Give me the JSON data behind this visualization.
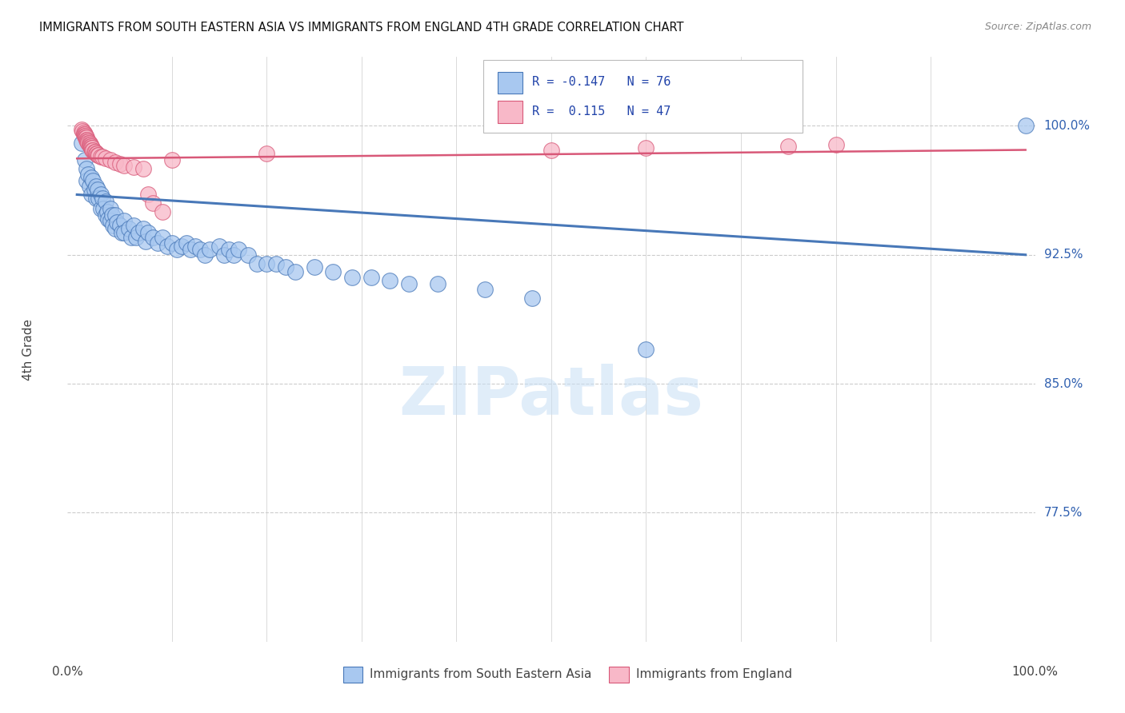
{
  "title": "IMMIGRANTS FROM SOUTH EASTERN ASIA VS IMMIGRANTS FROM ENGLAND 4TH GRADE CORRELATION CHART",
  "source": "Source: ZipAtlas.com",
  "ylabel": "4th Grade",
  "legend_blue_label": "Immigrants from South Eastern Asia",
  "legend_pink_label": "Immigrants from England",
  "legend_blue_R": "R = -0.147",
  "legend_blue_N": "N = 76",
  "legend_pink_R": "R =  0.115",
  "legend_pink_N": "N = 47",
  "ytick_labels": [
    "77.5%",
    "85.0%",
    "92.5%",
    "100.0%"
  ],
  "ytick_values": [
    0.775,
    0.85,
    0.925,
    1.0
  ],
  "ymin": 0.7,
  "ymax": 1.04,
  "xmin": -0.01,
  "xmax": 1.01,
  "blue_color": "#A8C8F0",
  "blue_edge_color": "#4878B8",
  "pink_color": "#F8B8C8",
  "pink_edge_color": "#D85878",
  "watermark": "ZIPatlas",
  "blue_scatter_x": [
    0.005,
    0.008,
    0.01,
    0.01,
    0.012,
    0.013,
    0.015,
    0.015,
    0.017,
    0.018,
    0.02,
    0.02,
    0.022,
    0.023,
    0.025,
    0.025,
    0.027,
    0.028,
    0.03,
    0.03,
    0.032,
    0.033,
    0.035,
    0.035,
    0.037,
    0.038,
    0.04,
    0.04,
    0.042,
    0.045,
    0.047,
    0.05,
    0.05,
    0.055,
    0.057,
    0.06,
    0.062,
    0.065,
    0.07,
    0.072,
    0.075,
    0.08,
    0.085,
    0.09,
    0.095,
    0.1,
    0.105,
    0.11,
    0.115,
    0.12,
    0.125,
    0.13,
    0.135,
    0.14,
    0.15,
    0.155,
    0.16,
    0.165,
    0.17,
    0.18,
    0.19,
    0.2,
    0.21,
    0.22,
    0.23,
    0.25,
    0.27,
    0.29,
    0.31,
    0.33,
    0.35,
    0.38,
    0.43,
    0.48,
    0.6,
    1.0
  ],
  "blue_scatter_y": [
    0.99,
    0.98,
    0.975,
    0.968,
    0.972,
    0.965,
    0.97,
    0.96,
    0.968,
    0.963,
    0.965,
    0.958,
    0.963,
    0.958,
    0.96,
    0.952,
    0.958,
    0.952,
    0.956,
    0.948,
    0.95,
    0.946,
    0.952,
    0.945,
    0.948,
    0.942,
    0.948,
    0.94,
    0.944,
    0.942,
    0.938,
    0.945,
    0.938,
    0.94,
    0.935,
    0.942,
    0.935,
    0.938,
    0.94,
    0.933,
    0.938,
    0.935,
    0.932,
    0.935,
    0.93,
    0.932,
    0.928,
    0.93,
    0.932,
    0.928,
    0.93,
    0.928,
    0.925,
    0.928,
    0.93,
    0.925,
    0.928,
    0.925,
    0.928,
    0.925,
    0.92,
    0.92,
    0.92,
    0.918,
    0.915,
    0.918,
    0.915,
    0.912,
    0.912,
    0.91,
    0.908,
    0.908,
    0.905,
    0.9,
    0.87,
    1.0
  ],
  "pink_scatter_x": [
    0.005,
    0.006,
    0.007,
    0.007,
    0.008,
    0.008,
    0.009,
    0.009,
    0.01,
    0.01,
    0.011,
    0.011,
    0.012,
    0.012,
    0.013,
    0.013,
    0.014,
    0.014,
    0.015,
    0.015,
    0.016,
    0.016,
    0.017,
    0.018,
    0.019,
    0.02,
    0.021,
    0.022,
    0.023,
    0.025,
    0.027,
    0.03,
    0.035,
    0.04,
    0.045,
    0.05,
    0.06,
    0.07,
    0.075,
    0.08,
    0.09,
    0.1,
    0.2,
    0.5,
    0.6,
    0.75,
    0.8
  ],
  "pink_scatter_y": [
    0.998,
    0.997,
    0.996,
    0.995,
    0.995,
    0.994,
    0.994,
    0.993,
    0.993,
    0.992,
    0.992,
    0.991,
    0.991,
    0.99,
    0.99,
    0.989,
    0.989,
    0.988,
    0.988,
    0.987,
    0.987,
    0.986,
    0.986,
    0.985,
    0.985,
    0.984,
    0.984,
    0.983,
    0.983,
    0.982,
    0.982,
    0.981,
    0.98,
    0.979,
    0.978,
    0.977,
    0.976,
    0.975,
    0.96,
    0.955,
    0.95,
    0.98,
    0.984,
    0.986,
    0.987,
    0.988,
    0.989
  ],
  "blue_trend_start_x": 0.0,
  "blue_trend_end_x": 1.0,
  "blue_trend_start_y": 0.96,
  "blue_trend_end_y": 0.925,
  "pink_trend_start_x": 0.0,
  "pink_trend_end_x": 1.0,
  "pink_trend_start_y": 0.981,
  "pink_trend_end_y": 0.986,
  "grid_color": "#cccccc",
  "label_color_blue": "#3060B0",
  "label_color_dark": "#444444"
}
